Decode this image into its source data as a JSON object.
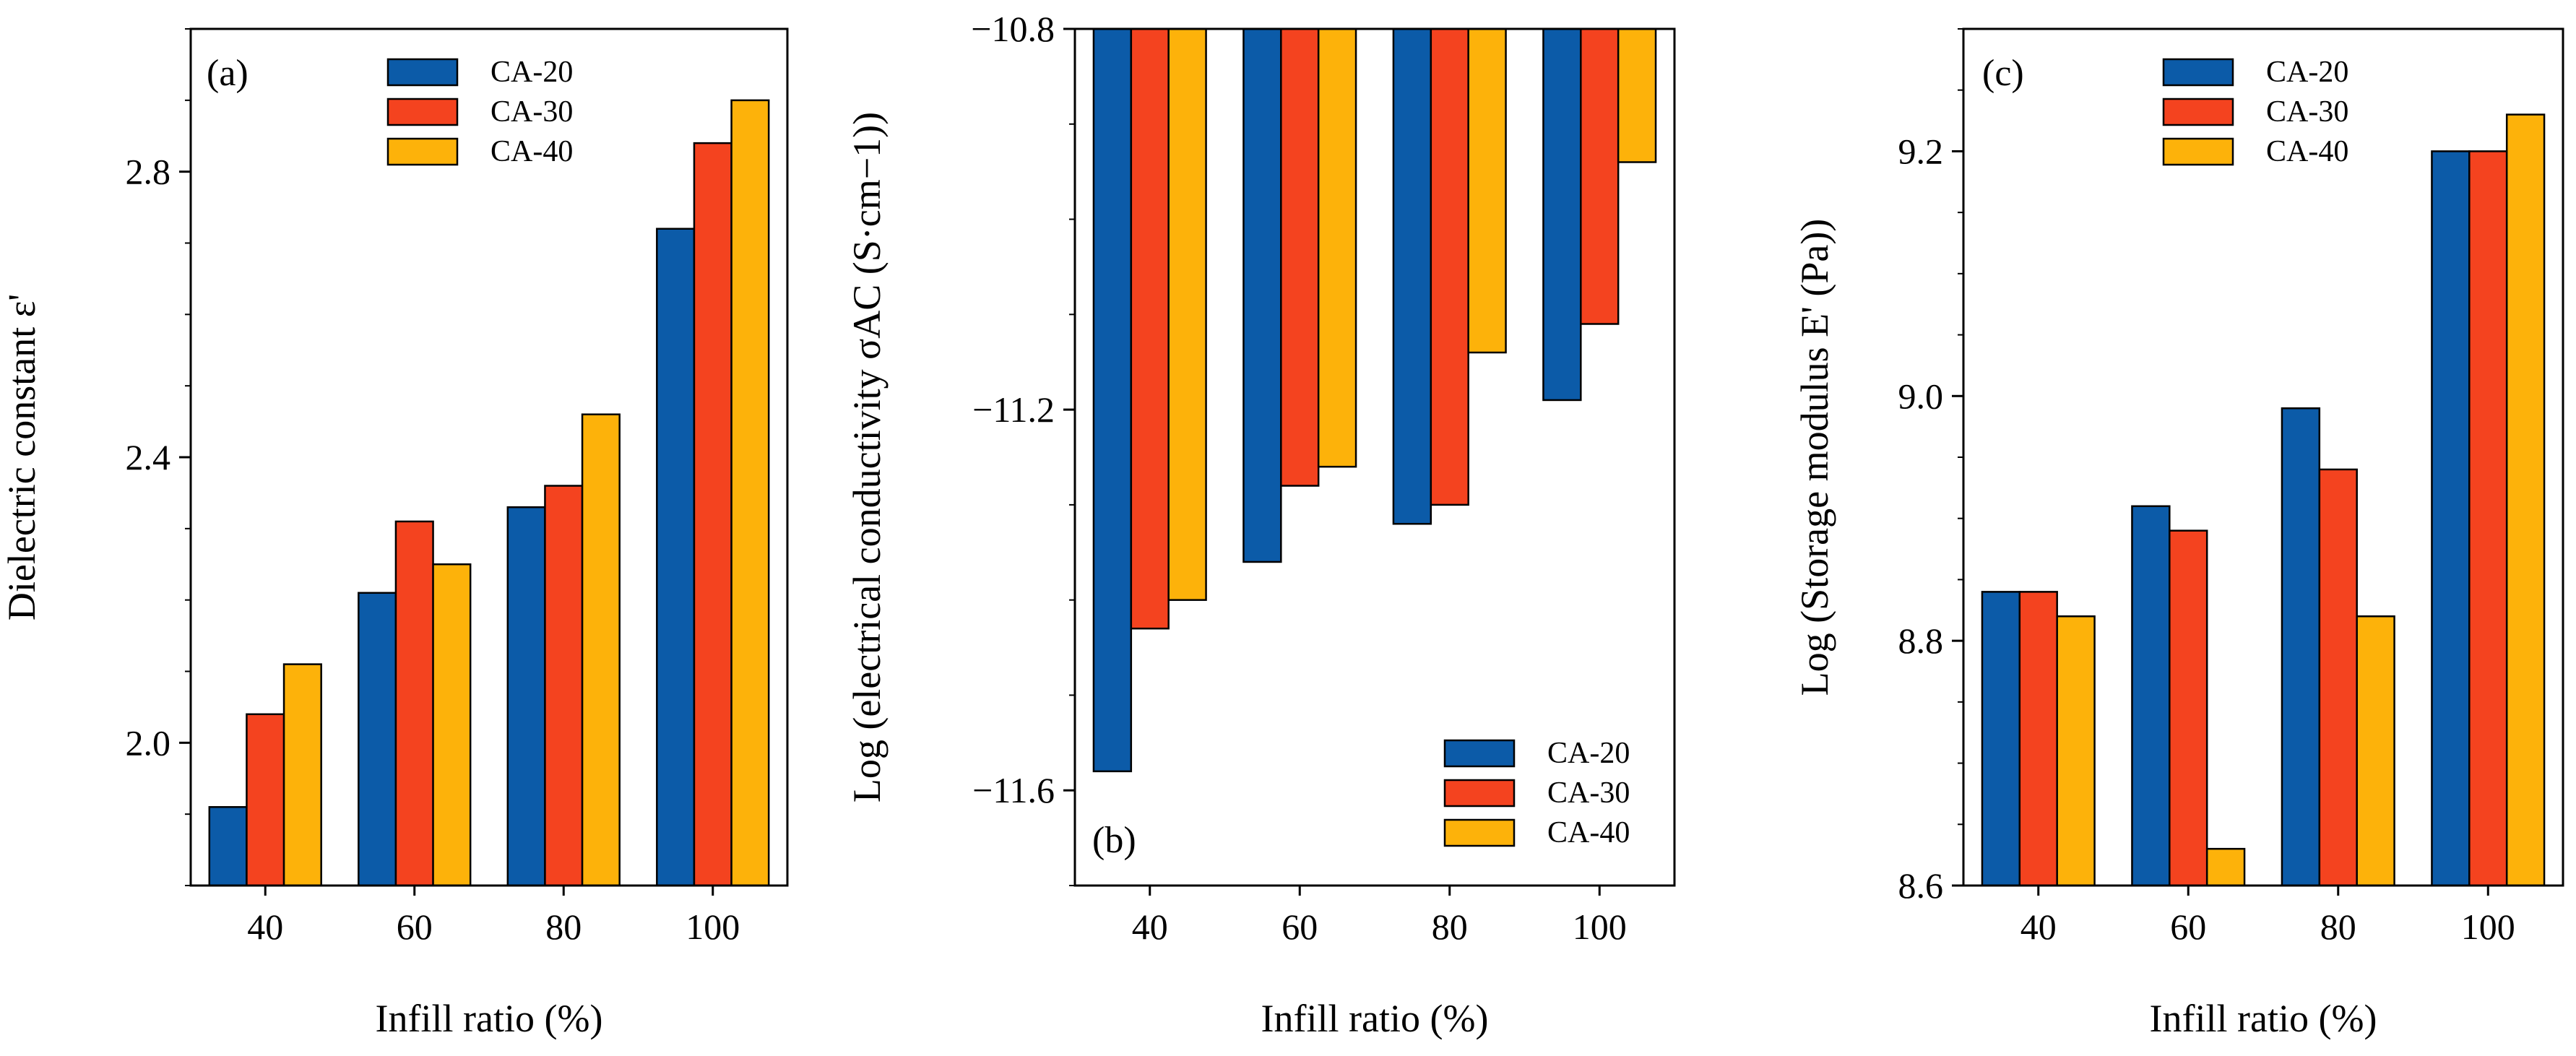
{
  "colors": {
    "CA-20": "#0c5ba8",
    "CA-30": "#f4431f",
    "CA-40": "#fdb20a"
  },
  "chart_data": [
    {
      "type": "bar",
      "panel_label": "(a)",
      "categories": [
        "40",
        "60",
        "80",
        "100"
      ],
      "series": [
        {
          "name": "CA-20",
          "values": [
            1.91,
            2.21,
            2.33,
            2.72
          ]
        },
        {
          "name": "CA-30",
          "values": [
            2.04,
            2.31,
            2.36,
            2.84
          ]
        },
        {
          "name": "CA-40",
          "values": [
            2.11,
            2.25,
            2.46,
            2.9
          ]
        }
      ],
      "xlabel": "Infill ratio (%)",
      "ylabel": "Dielectric constant ε'",
      "ylim": [
        1.8,
        3.0
      ],
      "yticks": [
        "2.0",
        "2.4",
        "2.8"
      ],
      "legend": "top-right",
      "grid": false
    },
    {
      "type": "bar",
      "panel_label": "(b)",
      "categories": [
        "40",
        "60",
        "80",
        "100"
      ],
      "series": [
        {
          "name": "CA-20",
          "values": [
            -11.58,
            -11.36,
            -11.32,
            -11.19
          ]
        },
        {
          "name": "CA-30",
          "values": [
            -11.43,
            -11.28,
            -11.3,
            -11.11
          ]
        },
        {
          "name": "CA-40",
          "values": [
            -11.4,
            -11.26,
            -11.14,
            -10.94
          ]
        }
      ],
      "xlabel": "Infill ratio (%)",
      "ylabel": "Log (electrical conductivity σAC (S·cm−1))",
      "ylim": [
        -11.7,
        -10.8
      ],
      "yticks": [
        "−11.6",
        "−11.2",
        "−10.8"
      ],
      "legend": "bottom-right",
      "grid": false
    },
    {
      "type": "bar",
      "panel_label": "(c)",
      "categories": [
        "40",
        "60",
        "80",
        "100"
      ],
      "series": [
        {
          "name": "CA-20",
          "values": [
            8.84,
            8.91,
            8.99,
            9.2
          ]
        },
        {
          "name": "CA-30",
          "values": [
            8.84,
            8.89,
            8.94,
            9.2
          ]
        },
        {
          "name": "CA-40",
          "values": [
            8.82,
            8.63,
            8.82,
            9.23
          ]
        }
      ],
      "xlabel": "Infill ratio (%)",
      "ylabel": "Log (Storage modulus E' (Pa))",
      "ylim": [
        8.6,
        9.3
      ],
      "yticks": [
        "8.6",
        "8.8",
        "9.0",
        "9.2"
      ],
      "legend": "top-right",
      "grid": false
    }
  ]
}
